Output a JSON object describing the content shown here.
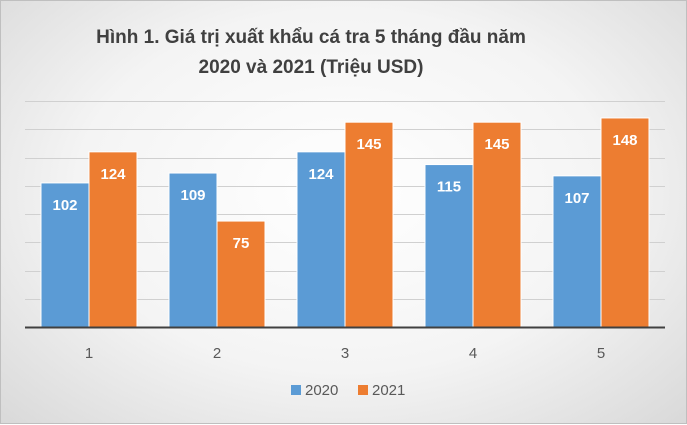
{
  "chart_data": {
    "type": "bar",
    "title_line1": "Hình 1. Giá trị xuất khẩu cá tra 5 tháng đầu năm",
    "title_line2": "2020 và 2021 (Triệu USD)",
    "categories": [
      "1",
      "2",
      "3",
      "4",
      "5"
    ],
    "series": [
      {
        "name": "2020",
        "color": "#5b9bd5",
        "values": [
          102,
          109,
          124,
          115,
          107
        ]
      },
      {
        "name": "2021",
        "color": "#ed7d31",
        "values": [
          124,
          75,
          145,
          145,
          148
        ]
      }
    ],
    "ylim": [
      0,
      160
    ],
    "grid": true,
    "legend_position": "bottom",
    "xlabel": "",
    "ylabel": ""
  }
}
